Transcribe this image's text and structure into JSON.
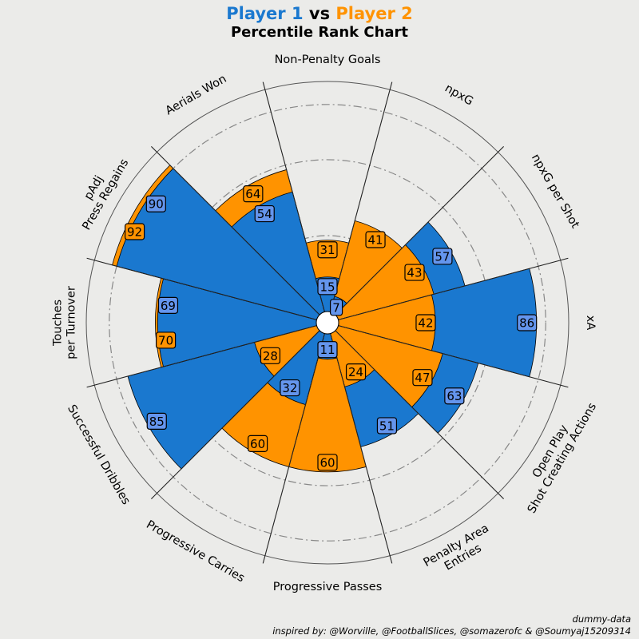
{
  "title": {
    "player1": "Player 1",
    "vs": "vs",
    "player2": "Player 2",
    "subtitle": "Percentile Rank Chart"
  },
  "credits": {
    "line1": "dummy-data",
    "line2": "inspired by: @Worville, @FootballSlices, @somazerofc & @Soumyaj15209314"
  },
  "colors": {
    "background": "#ebebe9",
    "player1": "#1a78cf",
    "player2": "#ff9300",
    "player1_label_box": "#6495ed",
    "player2_label_box": "#ff9300",
    "sector_lines": "#222222",
    "grid_dashed": "#888888"
  },
  "chart_data": {
    "type": "radial-bar",
    "title": "Percentile Rank Chart",
    "scale": [
      0,
      100
    ],
    "grid": "dash-dot rings",
    "categories": [
      [
        "Non-Penalty Goals"
      ],
      [
        "npxG"
      ],
      [
        "npxG per Shot"
      ],
      [
        "xA"
      ],
      [
        "Open Play",
        "Shot Creating Actions"
      ],
      [
        "Penalty Area",
        "Entries"
      ],
      [
        "Progressive Passes"
      ],
      [
        "Progressive Carries"
      ],
      [
        "Successful Dribbles"
      ],
      [
        "Touches",
        "per Turnover"
      ],
      [
        "pAdj",
        "Press Regains"
      ],
      [
        "Aerials Won"
      ]
    ],
    "series": [
      {
        "name": "Player 1",
        "values": [
          15,
          7,
          57,
          86,
          63,
          51,
          11,
          32,
          85,
          69,
          90,
          54
        ]
      },
      {
        "name": "Player 2",
        "values": [
          31,
          41,
          43,
          42,
          47,
          24,
          60,
          60,
          28,
          70,
          92,
          64
        ]
      }
    ]
  }
}
